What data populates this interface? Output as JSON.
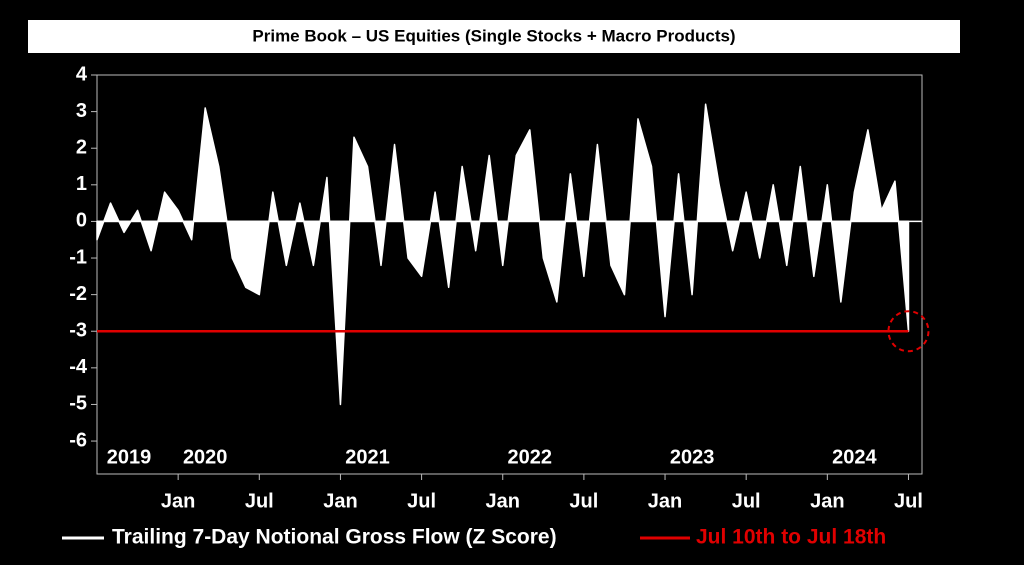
{
  "chart_data": {
    "type": "area",
    "title": "Prime Book – US Equities (Single Stocks + Macro Products)",
    "x": [
      "2019-07",
      "2019-08",
      "2019-09",
      "2019-10",
      "2019-11",
      "2019-12",
      "2020-01",
      "2020-02",
      "2020-03",
      "2020-04",
      "2020-05",
      "2020-06",
      "2020-07",
      "2020-08",
      "2020-09",
      "2020-10",
      "2020-11",
      "2020-12",
      "2021-01",
      "2021-02",
      "2021-03",
      "2021-04",
      "2021-05",
      "2021-06",
      "2021-07",
      "2021-08",
      "2021-09",
      "2021-10",
      "2021-11",
      "2021-12",
      "2022-01",
      "2022-02",
      "2022-03",
      "2022-04",
      "2022-05",
      "2022-06",
      "2022-07",
      "2022-08",
      "2022-09",
      "2022-10",
      "2022-11",
      "2022-12",
      "2023-01",
      "2023-02",
      "2023-03",
      "2023-04",
      "2023-05",
      "2023-06",
      "2023-07",
      "2023-08",
      "2023-09",
      "2023-10",
      "2023-11",
      "2023-12",
      "2024-01",
      "2024-02",
      "2024-03",
      "2024-04",
      "2024-05",
      "2024-06",
      "2024-07"
    ],
    "series": [
      {
        "name": "Trailing 7-Day Notional Gross Flow (Z Score)",
        "color": "#ffffff",
        "values": [
          -0.5,
          0.5,
          -0.3,
          0.3,
          -0.8,
          0.8,
          0.3,
          -0.5,
          3.1,
          1.5,
          -1.0,
          -1.8,
          -2.0,
          0.8,
          -1.2,
          0.5,
          -1.2,
          1.2,
          -5.0,
          2.3,
          1.5,
          -1.2,
          2.1,
          -1.0,
          -1.5,
          0.8,
          -1.8,
          1.5,
          -0.8,
          1.8,
          -1.2,
          1.8,
          2.5,
          -1.0,
          -2.2,
          1.3,
          -1.5,
          2.1,
          -1.2,
          -2.0,
          2.8,
          1.5,
          -2.6,
          1.3,
          -2.0,
          3.2,
          1.0,
          -0.8,
          0.8,
          -1.0,
          1.0,
          -1.2,
          1.5,
          -1.5,
          1.0,
          -2.2,
          0.8,
          2.5,
          0.3,
          1.1,
          -3.0
        ]
      }
    ],
    "reference_line": {
      "name": "Jul 10th to Jul 18th",
      "value": -3,
      "color": "#e00000"
    },
    "xlim": [
      "2019-07",
      "2024-08"
    ],
    "xticks": [
      {
        "value": "2020-01",
        "label": "Jan"
      },
      {
        "value": "2020-07",
        "label": "Jul"
      },
      {
        "value": "2021-01",
        "label": "Jan"
      },
      {
        "value": "2021-07",
        "label": "Jul"
      },
      {
        "value": "2022-01",
        "label": "Jan"
      },
      {
        "value": "2022-07",
        "label": "Jul"
      },
      {
        "value": "2023-01",
        "label": "Jan"
      },
      {
        "value": "2023-07",
        "label": "Jul"
      },
      {
        "value": "2024-01",
        "label": "Jan"
      },
      {
        "value": "2024-07",
        "label": "Jul"
      }
    ],
    "year_labels": [
      "2019",
      "2020",
      "2021",
      "2022",
      "2023",
      "2024"
    ],
    "ylim": [
      -6.9,
      4
    ],
    "yticks": [
      4,
      3,
      2,
      1,
      0,
      -1,
      -2,
      -3,
      -4,
      -5,
      -6
    ]
  }
}
